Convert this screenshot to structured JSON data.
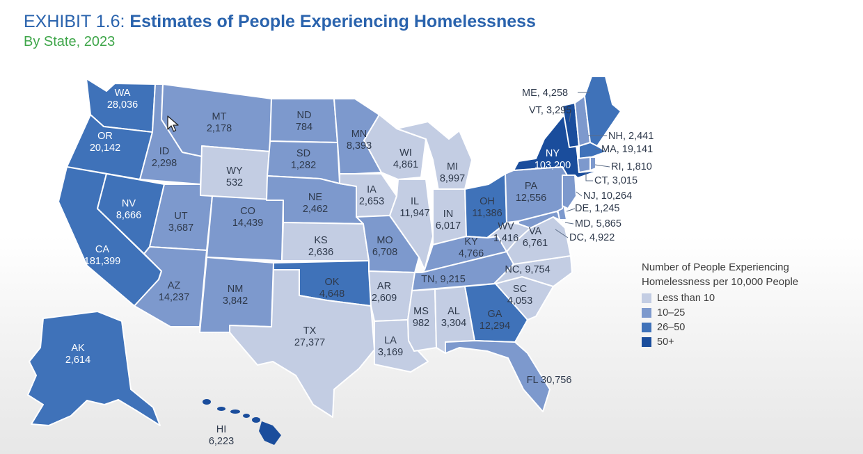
{
  "header": {
    "exhibit_prefix": "EXHIBIT 1.6:",
    "title": "Estimates of People Experiencing Homelessness",
    "subtitle": "By State, 2023"
  },
  "legend": {
    "title_line1": "Number of People Experiencing",
    "title_line2": "Homelessness per 10,000 People",
    "items": [
      {
        "label": "Less than 10",
        "color": "#c3cde3"
      },
      {
        "label": "10–25",
        "color": "#7d99cd"
      },
      {
        "label": "26–50",
        "color": "#3f72b9"
      },
      {
        "label": "50+",
        "color": "#1a4d9c"
      }
    ]
  },
  "states": {
    "WA": {
      "abbr": "WA",
      "count": "28,036"
    },
    "OR": {
      "abbr": "OR",
      "count": "20,142"
    },
    "CA": {
      "abbr": "CA",
      "count": "181,399"
    },
    "NV": {
      "abbr": "NV",
      "count": "8,666"
    },
    "ID": {
      "abbr": "ID",
      "count": "2,298"
    },
    "MT": {
      "abbr": "MT",
      "count": "2,178"
    },
    "WY": {
      "abbr": "WY",
      "count": "532"
    },
    "UT": {
      "abbr": "UT",
      "count": "3,687"
    },
    "AZ": {
      "abbr": "AZ",
      "count": "14,237"
    },
    "CO": {
      "abbr": "CO",
      "count": "14,439"
    },
    "NM": {
      "abbr": "NM",
      "count": "3,842"
    },
    "ND": {
      "abbr": "ND",
      "count": "784"
    },
    "SD": {
      "abbr": "SD",
      "count": "1,282"
    },
    "NE": {
      "abbr": "NE",
      "count": "2,462"
    },
    "KS": {
      "abbr": "KS",
      "count": "2,636"
    },
    "OK": {
      "abbr": "OK",
      "count": "4,648"
    },
    "TX": {
      "abbr": "TX",
      "count": "27,377"
    },
    "MN": {
      "abbr": "MN",
      "count": "8,393"
    },
    "IA": {
      "abbr": "IA",
      "count": "2,653"
    },
    "MO": {
      "abbr": "MO",
      "count": "6,708"
    },
    "AR": {
      "abbr": "AR",
      "count": "2,609"
    },
    "LA": {
      "abbr": "LA",
      "count": "3,169"
    },
    "WI": {
      "abbr": "WI",
      "count": "4,861"
    },
    "IL": {
      "abbr": "IL",
      "count": "11,947"
    },
    "MI": {
      "abbr": "MI",
      "count": "8,997"
    },
    "IN": {
      "abbr": "IN",
      "count": "6,017"
    },
    "OH": {
      "abbr": "OH",
      "count": "11,386"
    },
    "KY": {
      "abbr": "KY",
      "count": "4,766"
    },
    "TN": {
      "abbr": "TN",
      "count": "9,215"
    },
    "MS": {
      "abbr": "MS",
      "count": "982"
    },
    "AL": {
      "abbr": "AL",
      "count": "3,304"
    },
    "GA": {
      "abbr": "GA",
      "count": "12,294"
    },
    "FL": {
      "abbr": "FL",
      "count": "30,756"
    },
    "SC": {
      "abbr": "SC",
      "count": "4,053"
    },
    "NC": {
      "abbr": "NC",
      "count": "9,754"
    },
    "VA": {
      "abbr": "VA",
      "count": "6,761"
    },
    "WV": {
      "abbr": "WV",
      "count": "1,416"
    },
    "PA": {
      "abbr": "PA",
      "count": "12,556"
    },
    "NY": {
      "abbr": "NY",
      "count": "103,200"
    },
    "AK": {
      "abbr": "AK",
      "count": "2,614"
    },
    "HI": {
      "abbr": "HI",
      "count": "6,223"
    }
  },
  "callouts": {
    "ME": "ME, 4,258",
    "VT": "VT, 3,295",
    "NH": "NH, 2,441",
    "MA": "MA, 19,141",
    "RI": "RI, 1,810",
    "CT": "CT, 3,015",
    "NJ": "NJ, 10,264",
    "DE": "DE, 1,245",
    "MD": "MD, 5,865",
    "DC": "DC, 4,922"
  },
  "state_colors": {
    "WA": "#3f72b9",
    "OR": "#3f72b9",
    "CA": "#3f72b9",
    "NV": "#3f72b9",
    "ID": "#7d99cd",
    "MT": "#7d99cd",
    "WY": "#c3cde3",
    "UT": "#7d99cd",
    "AZ": "#7d99cd",
    "CO": "#7d99cd",
    "NM": "#7d99cd",
    "ND": "#7d99cd",
    "SD": "#7d99cd",
    "NE": "#7d99cd",
    "KS": "#c3cde3",
    "OK": "#3f72b9",
    "TX": "#c3cde3",
    "MN": "#7d99cd",
    "IA": "#c3cde3",
    "MO": "#7d99cd",
    "AR": "#c3cde3",
    "LA": "#c3cde3",
    "WI": "#c3cde3",
    "IL": "#c3cde3",
    "MI": "#c3cde3",
    "IN": "#c3cde3",
    "OH": "#3f72b9",
    "KY": "#7d99cd",
    "TN": "#7d99cd",
    "MS": "#c3cde3",
    "AL": "#c3cde3",
    "GA": "#3f72b9",
    "FL": "#7d99cd",
    "SC": "#c3cde3",
    "NC": "#c3cde3",
    "VA": "#c3cde3",
    "WV": "#c3cde3",
    "PA": "#7d99cd",
    "NY": "#1a4d9c",
    "AK": "#3f72b9",
    "HI": "#1a4d9c",
    "ME": "#3f72b9",
    "VT": "#1a4d9c",
    "NH": "#7d99cd",
    "MA": "#3f72b9",
    "RI": "#7d99cd",
    "CT": "#7d99cd",
    "NJ": "#7d99cd",
    "DE": "#7d99cd",
    "MD": "#7d99cd"
  }
}
